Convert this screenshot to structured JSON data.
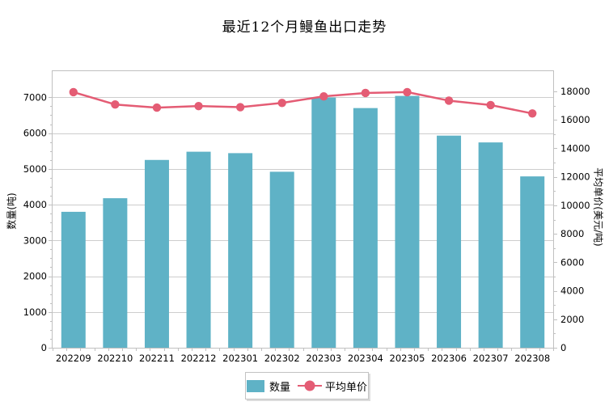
{
  "title": "最近12个月鳗鱼出口走势",
  "colors": {
    "bar": "#5fb2c6",
    "line": "#e45c74",
    "grid": "#cdcdcd",
    "axis": "#c0c0c0",
    "text": "#000000",
    "legend_border": "#c3c3c3"
  },
  "legend": {
    "items": [
      {
        "label": "数量",
        "type": "bar"
      },
      {
        "label": "平均单价",
        "type": "line"
      }
    ]
  },
  "chart_data": {
    "type": "bar+line",
    "title": "最近12个月鳗鱼出口走势",
    "categories": [
      "202209",
      "202210",
      "202211",
      "202212",
      "202301",
      "202302",
      "202303",
      "202304",
      "202305",
      "202306",
      "202307",
      "202308"
    ],
    "series": [
      {
        "name": "数量",
        "type": "bar",
        "axis": "left",
        "values": [
          3800,
          4180,
          5250,
          5480,
          5440,
          4920,
          6995,
          6700,
          7040,
          5930,
          5740,
          4790
        ]
      },
      {
        "name": "平均单价",
        "type": "line",
        "axis": "right",
        "values": [
          17950,
          17080,
          16860,
          16970,
          16890,
          17190,
          17650,
          17890,
          17950,
          17350,
          17040,
          16450
        ]
      }
    ],
    "left_axis": {
      "label": "数量(吨)",
      "ticks": [
        0,
        1000,
        2000,
        3000,
        4000,
        5000,
        6000,
        7000
      ],
      "max": 7732,
      "minor_step": 250
    },
    "right_axis": {
      "label": "平均单价(美元/吨)",
      "ticks": [
        0,
        2000,
        4000,
        6000,
        8000,
        10000,
        12000,
        14000,
        16000,
        18000
      ],
      "max": 19420,
      "minor_step": 1000
    },
    "grid": "horizontal",
    "legend_position": "bottom-center"
  }
}
